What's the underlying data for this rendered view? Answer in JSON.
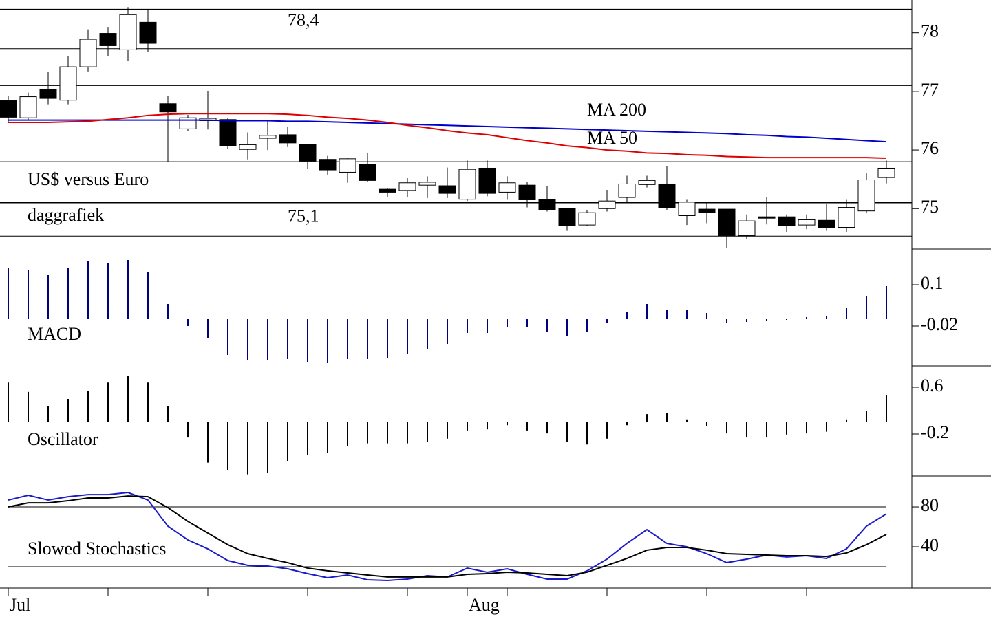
{
  "chart_data": [
    {
      "type": "candlestick",
      "annotations": [
        "US$ versus Euro",
        "daggrafiek"
      ],
      "categories": [
        "Jul",
        null,
        null,
        null,
        null,
        null,
        null,
        null,
        null,
        null,
        null,
        null,
        null,
        null,
        null,
        null,
        null,
        null,
        null,
        null,
        null,
        null,
        null,
        "Aug",
        null,
        null,
        null,
        null,
        null,
        null,
        null,
        null,
        null,
        null,
        null,
        null,
        null,
        null,
        null,
        null,
        null,
        null,
        null,
        null,
        null
      ],
      "xticks": [
        0,
        5,
        10,
        15,
        20,
        23,
        25,
        30,
        35,
        40
      ],
      "open": [
        76.84,
        76.55,
        77.04,
        76.85,
        77.42,
        77.99,
        77.71,
        78.18,
        76.79,
        76.36,
        76.5,
        76.52,
        76.01,
        76.2,
        76.26,
        76.1,
        75.84,
        75.62,
        75.76,
        75.33,
        75.31,
        75.4,
        75.39,
        75.16,
        75.69,
        75.28,
        75.4,
        75.15,
        75.0,
        74.72,
        75.0,
        75.19,
        75.41,
        75.42,
        74.88,
        74.99,
        74.99,
        74.54,
        74.86,
        74.86,
        74.72,
        74.8,
        74.68,
        74.96,
        75.53
      ],
      "high": [
        76.92,
        76.98,
        77.33,
        77.6,
        78.06,
        78.1,
        78.44,
        78.4,
        76.92,
        76.6,
        77.0,
        76.55,
        76.3,
        76.5,
        76.4,
        76.1,
        75.9,
        75.87,
        75.95,
        75.35,
        75.52,
        75.55,
        75.7,
        75.82,
        75.82,
        75.55,
        75.45,
        75.38,
        75.0,
        74.98,
        75.32,
        75.56,
        75.56,
        75.73,
        75.15,
        75.12,
        74.99,
        74.9,
        75.2,
        74.9,
        74.9,
        75.08,
        75.15,
        75.6,
        75.82
      ],
      "low": [
        76.47,
        76.5,
        76.78,
        76.78,
        77.34,
        77.6,
        77.52,
        77.67,
        75.8,
        76.32,
        76.35,
        76.02,
        75.84,
        76.0,
        76.05,
        75.68,
        75.58,
        75.44,
        75.45,
        75.2,
        75.2,
        75.18,
        75.18,
        75.13,
        75.21,
        75.15,
        75.02,
        74.95,
        74.62,
        74.7,
        74.95,
        75.1,
        75.36,
        74.98,
        74.72,
        74.75,
        74.33,
        74.48,
        74.73,
        74.6,
        74.65,
        74.62,
        74.6,
        74.92,
        75.43
      ],
      "close": [
        76.56,
        76.91,
        76.88,
        77.42,
        77.89,
        77.78,
        78.31,
        77.82,
        76.65,
        76.55,
        76.54,
        76.07,
        76.09,
        76.25,
        76.12,
        75.81,
        75.66,
        75.85,
        75.48,
        75.28,
        75.44,
        75.45,
        75.26,
        75.67,
        75.26,
        75.44,
        75.15,
        74.98,
        74.71,
        74.93,
        75.13,
        75.42,
        75.48,
        75.01,
        75.11,
        74.93,
        74.54,
        74.79,
        74.84,
        74.71,
        74.81,
        74.68,
        75.02,
        75.49,
        75.69
      ],
      "series": [
        {
          "name": "MA 200",
          "color": "#0000cc",
          "values": [
            76.51,
            76.51,
            76.51,
            76.51,
            76.51,
            76.51,
            76.51,
            76.51,
            76.51,
            76.51,
            76.51,
            76.5,
            76.5,
            76.5,
            76.49,
            76.49,
            76.48,
            76.47,
            76.46,
            76.45,
            76.44,
            76.43,
            76.42,
            76.41,
            76.4,
            76.39,
            76.38,
            76.37,
            76.36,
            76.35,
            76.34,
            76.33,
            76.32,
            76.31,
            76.3,
            76.29,
            76.28,
            76.26,
            76.25,
            76.23,
            76.22,
            76.2,
            76.18,
            76.16,
            76.14
          ]
        },
        {
          "name": "MA 50",
          "color": "#dd0000",
          "values": [
            76.47,
            76.47,
            76.47,
            76.48,
            76.49,
            76.52,
            76.55,
            76.59,
            76.61,
            76.62,
            76.62,
            76.62,
            76.62,
            76.62,
            76.61,
            76.59,
            76.56,
            76.54,
            76.51,
            76.47,
            76.42,
            76.38,
            76.33,
            76.29,
            76.26,
            76.21,
            76.16,
            76.12,
            76.07,
            76.04,
            76.0,
            75.98,
            75.95,
            75.94,
            75.92,
            75.91,
            75.89,
            75.88,
            75.87,
            75.87,
            75.87,
            75.87,
            75.87,
            75.87,
            75.86
          ]
        }
      ],
      "levels": [
        {
          "value": 78.4,
          "label": "78,4"
        },
        77.73,
        77.1,
        75.8,
        {
          "value": 75.1,
          "label": "75,1"
        },
        74.53
      ],
      "ylim": [
        74.51,
        78.56
      ],
      "yticks": [
        75,
        76,
        77,
        78
      ]
    },
    {
      "type": "bar",
      "title": "MACD",
      "color": "#000080",
      "values": [
        0.148,
        0.144,
        0.128,
        0.148,
        0.168,
        0.162,
        0.172,
        0.138,
        0.044,
        -0.02,
        -0.056,
        -0.104,
        -0.12,
        -0.12,
        -0.116,
        -0.124,
        -0.128,
        -0.116,
        -0.116,
        -0.112,
        -0.1,
        -0.088,
        -0.072,
        -0.04,
        -0.04,
        -0.024,
        -0.024,
        -0.036,
        -0.048,
        -0.036,
        -0.012,
        0.02,
        0.044,
        0.028,
        0.028,
        0.018,
        -0.012,
        -0.008,
        -0.004,
        -0.002,
        0.006,
        0.008,
        0.032,
        0.068,
        0.096
      ],
      "ylim": [
        -0.132,
        0.204
      ],
      "yticks": [
        0.1,
        -0.02
      ]
    },
    {
      "type": "bar",
      "title": "Oscillator",
      "color": "#000000",
      "values": [
        0.68,
        0.52,
        0.28,
        0.4,
        0.54,
        0.68,
        0.8,
        0.68,
        0.28,
        -0.26,
        -0.69,
        -0.82,
        -0.89,
        -0.87,
        -0.66,
        -0.56,
        -0.52,
        -0.4,
        -0.36,
        -0.36,
        -0.36,
        -0.34,
        -0.28,
        -0.14,
        -0.12,
        -0.05,
        -0.14,
        -0.19,
        -0.33,
        -0.38,
        -0.28,
        -0.05,
        0.14,
        0.16,
        0.05,
        -0.07,
        -0.19,
        -0.26,
        -0.26,
        -0.21,
        -0.19,
        -0.16,
        0.05,
        0.19,
        0.47
      ],
      "ylim": [
        -0.918,
        0.965
      ],
      "yticks": [
        0.6,
        -0.2
      ]
    },
    {
      "type": "line",
      "title": "Slowed Stochastics",
      "series": [
        {
          "color": "#1a1acc",
          "values": [
            86.9,
            91.7,
            86.9,
            90.3,
            92.4,
            92.4,
            94.5,
            86.9,
            60.7,
            46.9,
            37.9,
            26.2,
            21.4,
            20.7,
            17.9,
            13.1,
            9.0,
            11.7,
            6.9,
            6.2,
            7.6,
            11.0,
            9.7,
            18.6,
            14.5,
            17.9,
            12.4,
            7.6,
            7.6,
            15.9,
            27.6,
            43.4,
            57.2,
            43.4,
            40.0,
            33.1,
            24.1,
            27.6,
            31.7,
            29.7,
            31.0,
            28.3,
            37.9,
            60.7,
            73.1
          ]
        },
        {
          "color": "#000000",
          "values": [
            80,
            84.1,
            84.1,
            86.2,
            89,
            89,
            91,
            90.3,
            79.3,
            65.5,
            53.8,
            42.1,
            33.1,
            28.3,
            24.1,
            18.6,
            15.9,
            13.8,
            11.7,
            9.7,
            9.7,
            9.7,
            9.7,
            12.4,
            13.1,
            14.5,
            13.8,
            12.4,
            11,
            14.5,
            21.4,
            28.3,
            36.6,
            39.3,
            39.3,
            36.6,
            33.1,
            32.4,
            31.7,
            31,
            31,
            30.3,
            33.8,
            42.1,
            52.4
          ]
        }
      ],
      "levels": [
        80,
        20
      ],
      "ylim": [
        -1.4,
        109.7
      ],
      "yticks": [
        80,
        40
      ]
    }
  ]
}
